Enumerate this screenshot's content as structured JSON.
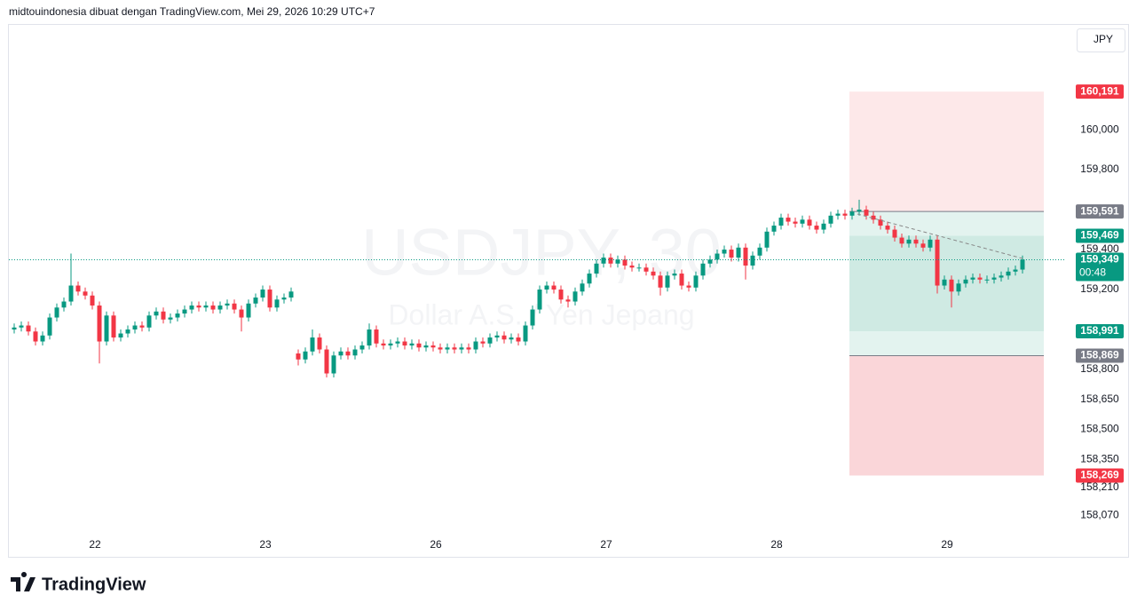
{
  "header": {
    "title": "midtouindonesia dibuat dengan TradingView.com, Mei 29, 2026 10:29 UTC+7"
  },
  "brand": "TradingView",
  "chart_data": {
    "type": "candlestick",
    "symbol": "USDJPY, 30",
    "description": "Dollar A.S. / Yen Jepang",
    "currency": "JPY",
    "up_color": "#089981",
    "down_color": "#f23645",
    "ylim": [
      157.862,
      160.525
    ],
    "yticks": [
      {
        "value": 160.0,
        "label": "160,000"
      },
      {
        "value": 159.8,
        "label": "159,800"
      },
      {
        "value": 159.4,
        "label": "159,400"
      },
      {
        "value": 159.2,
        "label": "159,200"
      },
      {
        "value": 158.8,
        "label": "158,800"
      },
      {
        "value": 158.65,
        "label": "158,650"
      },
      {
        "value": 158.5,
        "label": "158,500"
      },
      {
        "value": 158.35,
        "label": "158,350"
      },
      {
        "value": 158.21,
        "label": "158,210"
      },
      {
        "value": 158.07,
        "label": "158,070"
      }
    ],
    "grid": false,
    "categories": [
      null,
      null,
      null,
      null,
      null,
      null,
      null,
      null,
      null,
      null,
      null,
      null,
      "22",
      null,
      null,
      null,
      null,
      null,
      null,
      null,
      null,
      null,
      null,
      null,
      null,
      null,
      null,
      null,
      null,
      null,
      null,
      null,
      null,
      null,
      null,
      null,
      "23",
      null,
      null,
      null,
      null,
      null,
      null,
      null,
      null,
      null,
      null,
      null,
      null,
      null,
      null,
      null,
      null,
      null,
      null,
      null,
      null,
      null,
      null,
      null,
      "26",
      null,
      null,
      null,
      null,
      null,
      null,
      null,
      null,
      null,
      null,
      null,
      null,
      null,
      null,
      null,
      null,
      null,
      null,
      null,
      null,
      null,
      null,
      null,
      "27",
      null,
      null,
      null,
      null,
      null,
      null,
      null,
      null,
      null,
      null,
      null,
      null,
      null,
      null,
      null,
      null,
      null,
      null,
      null,
      null,
      null,
      null,
      null,
      "28",
      null,
      null,
      null,
      null,
      null,
      null,
      null,
      null,
      null,
      null,
      null,
      null,
      null,
      null,
      null,
      null,
      null,
      null,
      null,
      null,
      null,
      null,
      null,
      "29",
      null,
      null,
      null,
      null,
      null,
      null,
      null,
      null,
      null,
      null
    ],
    "open": [
      159.0,
      159.01,
      159.02,
      158.99,
      158.94,
      158.97,
      159.06,
      159.11,
      159.14,
      159.22,
      159.19,
      159.17,
      159.12,
      158.94,
      159.07,
      158.96,
      158.98,
      159.0,
      159.02,
      159.01,
      159.07,
      159.09,
      159.05,
      159.06,
      159.08,
      159.1,
      159.12,
      159.11,
      159.12,
      159.1,
      159.12,
      159.13,
      159.1,
      159.06,
      159.13,
      159.16,
      159.2,
      159.11,
      159.15,
      159.16,
      158.88,
      158.85,
      158.89,
      158.96,
      158.9,
      158.78,
      158.87,
      158.89,
      158.87,
      158.9,
      158.92,
      159.0,
      158.93,
      158.92,
      158.93,
      158.94,
      158.92,
      158.93,
      158.91,
      158.92,
      158.91,
      158.9,
      158.91,
      158.9,
      158.91,
      158.9,
      158.94,
      158.93,
      158.96,
      158.97,
      158.95,
      158.96,
      158.94,
      159.02,
      159.1,
      159.2,
      159.22,
      159.2,
      159.15,
      159.14,
      159.19,
      159.23,
      159.28,
      159.33,
      159.36,
      159.33,
      159.35,
      159.32,
      159.31,
      159.31,
      159.29,
      159.27,
      159.21,
      159.27,
      159.28,
      159.22,
      159.21,
      159.27,
      159.33,
      159.35,
      159.38,
      159.4,
      159.36,
      159.41,
      159.32,
      159.37,
      159.41,
      159.49,
      159.52,
      159.56,
      159.54,
      159.53,
      159.55,
      159.52,
      159.5,
      159.53,
      159.57,
      159.58,
      159.57,
      159.59,
      159.6,
      159.57,
      159.55,
      159.52,
      159.5,
      159.46,
      159.43,
      159.45,
      159.43,
      159.41,
      159.45,
      159.22,
      159.25,
      159.19,
      159.23,
      159.25,
      159.26,
      159.25,
      159.25,
      159.26,
      159.27,
      159.29,
      159.3
    ],
    "high": [
      159.03,
      159.04,
      159.04,
      159.01,
      158.99,
      159.08,
      159.13,
      159.16,
      159.38,
      159.24,
      159.21,
      159.19,
      159.14,
      159.09,
      159.09,
      159.0,
      159.02,
      159.04,
      159.04,
      159.09,
      159.11,
      159.11,
      159.08,
      159.1,
      159.12,
      159.14,
      159.14,
      159.14,
      159.14,
      159.14,
      159.15,
      159.15,
      159.12,
      159.15,
      159.18,
      159.22,
      159.22,
      159.17,
      159.18,
      159.21,
      158.9,
      158.91,
      159.0,
      158.98,
      158.92,
      158.89,
      158.91,
      158.91,
      158.92,
      158.94,
      159.03,
      159.02,
      158.95,
      158.95,
      158.96,
      158.96,
      158.95,
      158.95,
      158.94,
      158.94,
      158.93,
      158.93,
      158.93,
      158.93,
      158.93,
      158.96,
      158.96,
      158.98,
      158.99,
      158.99,
      158.98,
      158.98,
      159.04,
      159.12,
      159.22,
      159.24,
      159.24,
      159.22,
      159.17,
      159.21,
      159.25,
      159.3,
      159.35,
      159.38,
      159.38,
      159.37,
      159.37,
      159.34,
      159.33,
      159.33,
      159.31,
      159.29,
      159.29,
      159.3,
      159.3,
      159.24,
      159.29,
      159.35,
      159.37,
      159.4,
      159.42,
      159.42,
      159.43,
      159.43,
      159.39,
      159.43,
      159.51,
      159.54,
      159.58,
      159.58,
      159.56,
      159.57,
      159.57,
      159.54,
      159.55,
      159.59,
      159.6,
      159.6,
      159.61,
      159.65,
      159.62,
      159.59,
      159.57,
      159.54,
      159.52,
      159.48,
      159.47,
      159.47,
      159.45,
      159.47,
      159.47,
      159.27,
      159.27,
      159.25,
      159.27,
      159.28,
      159.28,
      159.27,
      159.28,
      159.29,
      159.31,
      159.32,
      159.37
    ],
    "low": [
      158.98,
      158.99,
      158.97,
      158.92,
      158.92,
      158.95,
      159.04,
      159.09,
      159.12,
      159.17,
      159.15,
      159.1,
      158.83,
      158.92,
      158.94,
      158.94,
      158.96,
      158.98,
      158.99,
      158.99,
      159.05,
      159.03,
      159.03,
      159.04,
      159.06,
      159.08,
      159.09,
      159.09,
      159.08,
      159.08,
      159.1,
      159.08,
      158.99,
      159.04,
      159.11,
      159.14,
      159.09,
      159.09,
      159.13,
      159.14,
      158.82,
      158.83,
      158.87,
      158.88,
      158.76,
      158.76,
      158.85,
      158.85,
      158.85,
      158.88,
      158.9,
      158.91,
      158.9,
      158.9,
      158.91,
      158.9,
      158.9,
      158.89,
      158.89,
      158.89,
      158.88,
      158.88,
      158.88,
      158.88,
      158.88,
      158.88,
      158.91,
      158.91,
      158.94,
      158.93,
      158.93,
      158.92,
      158.92,
      159.0,
      159.08,
      159.18,
      159.18,
      159.13,
      159.11,
      159.12,
      159.17,
      159.21,
      159.26,
      159.31,
      159.31,
      159.31,
      159.3,
      159.29,
      159.29,
      159.27,
      159.25,
      159.17,
      159.19,
      159.25,
      159.2,
      159.19,
      159.19,
      159.25,
      159.31,
      159.33,
      159.36,
      159.34,
      159.34,
      159.25,
      159.3,
      159.35,
      159.39,
      159.47,
      159.5,
      159.52,
      159.51,
      159.51,
      159.5,
      159.48,
      159.48,
      159.51,
      159.55,
      159.55,
      159.55,
      159.57,
      159.55,
      159.53,
      159.5,
      159.48,
      159.44,
      159.41,
      159.41,
      159.41,
      159.39,
      159.39,
      159.18,
      159.2,
      159.11,
      159.17,
      159.21,
      159.23,
      159.23,
      159.23,
      159.23,
      159.24,
      159.25,
      159.27,
      159.28
    ],
    "close": [
      159.01,
      159.02,
      158.99,
      158.94,
      158.97,
      159.06,
      159.11,
      159.14,
      159.22,
      159.19,
      159.17,
      159.12,
      158.94,
      159.07,
      158.96,
      158.98,
      159.0,
      159.02,
      159.01,
      159.07,
      159.09,
      159.05,
      159.06,
      159.08,
      159.1,
      159.12,
      159.11,
      159.12,
      159.1,
      159.12,
      159.13,
      159.1,
      159.06,
      159.13,
      159.16,
      159.2,
      159.11,
      159.15,
      159.16,
      159.19,
      158.85,
      158.89,
      158.96,
      158.9,
      158.78,
      158.87,
      158.89,
      158.87,
      158.9,
      158.92,
      159.0,
      158.93,
      158.92,
      158.93,
      158.94,
      158.92,
      158.93,
      158.91,
      158.92,
      158.91,
      158.9,
      158.91,
      158.9,
      158.91,
      158.9,
      158.94,
      158.93,
      158.96,
      158.97,
      158.95,
      158.96,
      158.94,
      159.02,
      159.1,
      159.2,
      159.22,
      159.2,
      159.15,
      159.14,
      159.19,
      159.23,
      159.28,
      159.33,
      159.36,
      159.33,
      159.35,
      159.32,
      159.31,
      159.31,
      159.29,
      159.27,
      159.21,
      159.27,
      159.28,
      159.22,
      159.21,
      159.27,
      159.33,
      159.35,
      159.38,
      159.4,
      159.36,
      159.41,
      159.32,
      159.37,
      159.41,
      159.49,
      159.52,
      159.56,
      159.54,
      159.53,
      159.55,
      159.52,
      159.5,
      159.53,
      159.57,
      159.58,
      159.57,
      159.59,
      159.6,
      159.57,
      159.55,
      159.52,
      159.5,
      159.46,
      159.43,
      159.45,
      159.43,
      159.41,
      159.45,
      159.22,
      159.25,
      159.19,
      159.23,
      159.25,
      159.26,
      159.25,
      159.25,
      159.26,
      159.27,
      159.29,
      159.3,
      159.35
    ],
    "price_levels": [
      {
        "value": 160.191,
        "label": "160,191",
        "color": "#f23645"
      },
      {
        "value": 159.591,
        "label": "159,591",
        "color": "#787b86"
      },
      {
        "value": 159.469,
        "label": "159,469",
        "color": "#089981"
      },
      {
        "value": 158.991,
        "label": "158,991",
        "color": "#089981"
      },
      {
        "value": 158.869,
        "label": "158,869",
        "color": "#787b86"
      },
      {
        "value": 158.269,
        "label": "158,269",
        "color": "#f23645"
      }
    ],
    "zone_colors": [
      "#fde8e9",
      "#e3f3ef",
      "#cfeae3",
      "#e3f3ef",
      "#fad6d9"
    ],
    "last_price": {
      "value": 159.349,
      "label": "159,349",
      "countdown": "00:48",
      "color": "#089981"
    }
  }
}
